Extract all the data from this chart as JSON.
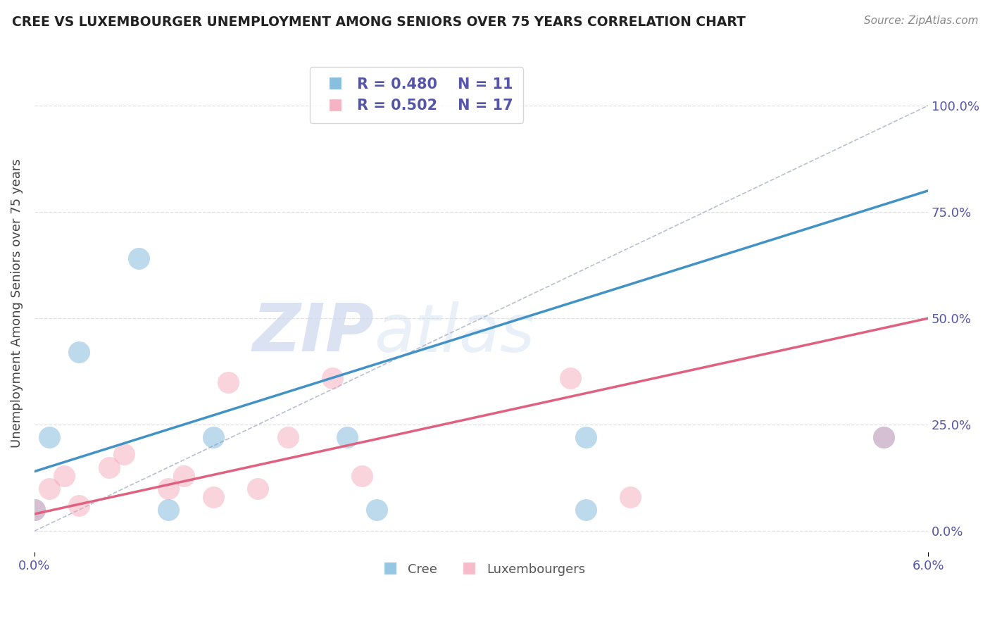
{
  "title": "CREE VS LUXEMBOURGER UNEMPLOYMENT AMONG SENIORS OVER 75 YEARS CORRELATION CHART",
  "source": "Source: ZipAtlas.com",
  "ylabel": "Unemployment Among Seniors over 75 years",
  "xmin": 0.0,
  "xmax": 0.06,
  "ymin": -0.05,
  "ymax": 1.12,
  "yticks": [
    0.0,
    0.25,
    0.5,
    0.75,
    1.0
  ],
  "ytick_labels": [
    "0.0%",
    "25.0%",
    "50.0%",
    "75.0%",
    "100.0%"
  ],
  "cree_R": 0.48,
  "cree_N": 11,
  "lux_R": 0.502,
  "lux_N": 17,
  "cree_color": "#6baed6",
  "lux_color": "#f4a0b5",
  "cree_line_color": "#4292c6",
  "lux_line_color": "#e06080",
  "ref_line_color": "#b0b8cc",
  "cree_points_x": [
    0.0,
    0.001,
    0.003,
    0.007,
    0.009,
    0.012,
    0.021,
    0.023,
    0.037,
    0.037,
    0.057
  ],
  "cree_points_y": [
    0.05,
    0.22,
    0.42,
    0.64,
    0.05,
    0.22,
    0.22,
    0.05,
    0.22,
    0.05,
    0.22
  ],
  "lux_points_x": [
    0.0,
    0.001,
    0.002,
    0.003,
    0.005,
    0.006,
    0.009,
    0.01,
    0.012,
    0.013,
    0.015,
    0.017,
    0.02,
    0.022,
    0.036,
    0.04,
    0.057
  ],
  "lux_points_y": [
    0.05,
    0.1,
    0.13,
    0.06,
    0.15,
    0.18,
    0.1,
    0.13,
    0.08,
    0.35,
    0.1,
    0.22,
    0.36,
    0.13,
    0.36,
    0.08,
    0.22
  ],
  "background_color": "#ffffff",
  "grid_color": "#e0e0e0",
  "watermark_color": "#dce6f5",
  "title_color": "#222222",
  "source_color": "#888888",
  "tick_color": "#5555aa",
  "ylabel_color": "#444444"
}
